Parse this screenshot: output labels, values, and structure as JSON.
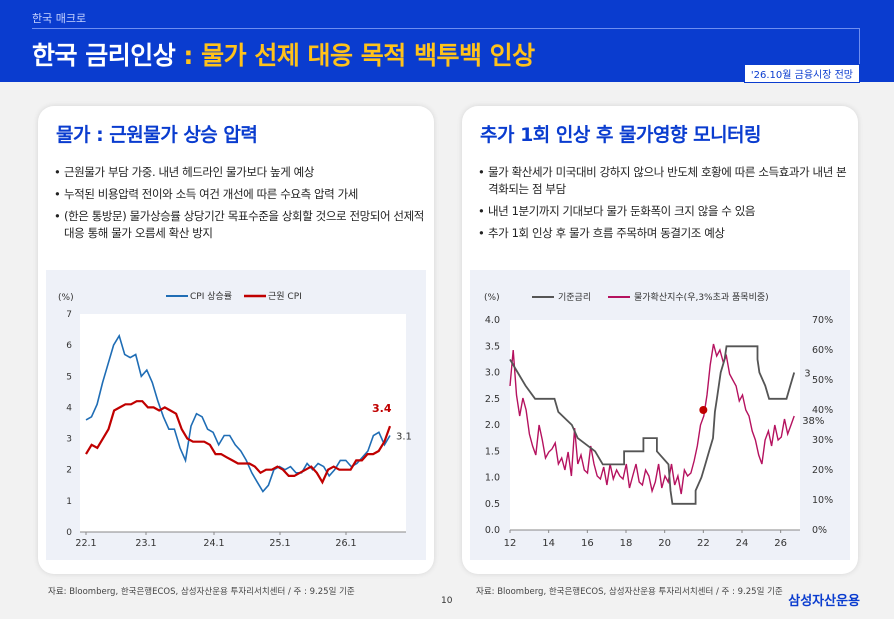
{
  "header": {
    "section": "한국 매크로",
    "title_main": "한국 금리인상 ",
    "title_highlight": " : 물가 선제 대응 목적 백투백 인상",
    "badge": "'26.10월 금융시장 전망"
  },
  "left_card": {
    "title": "물가 : 근원물가 상승 압력",
    "bullets": [
      "근원물가 부담 가중. 내년 헤드라인 물가보다 높게 예상",
      "누적된 비용압력 전이와 소득 여건 개선에 따른 수요측 압력 가세",
      "(한은 통방문) 물가상승률 상당기간 목표수준을 상회할 것으로 전망되어 선제적 대응 통해 물가 오름세 확산 방지"
    ]
  },
  "right_card": {
    "title": "추가 1회 인상 후 물가영향 모니터링",
    "bullets": [
      "물가 확산세가 미국대비 강하지 않으나 반도체 호황에 따른 소득효과가 내년 본격화되는 점 부담",
      "내년 1분기까지 기대보다 물가 둔화폭이 크지 않을 수 있음",
      "추가 1회 인상 후 물가 흐름 주목하며 동결기조 예상"
    ]
  },
  "chart_data": [
    {
      "type": "line",
      "unit_label": "(%)",
      "x_ticks": [
        "22.1",
        "23.1",
        "24.1",
        "25.1",
        "26.1"
      ],
      "ylim": [
        0,
        7
      ],
      "y_ticks": [
        "0",
        "1",
        "2",
        "3",
        "4",
        "5",
        "6",
        "7"
      ],
      "legend_position": "top",
      "series": [
        {
          "name": "CPI 상승률",
          "color": "#1f6db5",
          "end_label": "3.1",
          "values": [
            3.6,
            3.7,
            4.1,
            4.8,
            5.4,
            6.0,
            6.3,
            5.7,
            5.6,
            5.7,
            5.0,
            5.2,
            4.8,
            4.2,
            3.7,
            3.3,
            3.3,
            2.7,
            2.3,
            3.4,
            3.8,
            3.7,
            3.3,
            3.2,
            2.8,
            3.1,
            3.1,
            2.8,
            2.6,
            2.3,
            1.9,
            1.6,
            1.3,
            1.5,
            2.0,
            2.1,
            2.0,
            2.1,
            1.9,
            1.9,
            2.2,
            2.0,
            2.2,
            2.1,
            1.8,
            2.0,
            2.3,
            2.3,
            2.1,
            2.2,
            2.4,
            2.6,
            3.1,
            3.2,
            2.8,
            3.1
          ]
        },
        {
          "name": "근원 CPI",
          "color": "#c00000",
          "end_label": "3.4",
          "values": [
            2.5,
            2.8,
            2.7,
            3.0,
            3.3,
            3.9,
            4.0,
            4.1,
            4.1,
            4.2,
            4.2,
            4.0,
            4.0,
            3.9,
            4.0,
            3.9,
            3.8,
            3.3,
            3.0,
            2.9,
            2.9,
            2.9,
            2.8,
            2.5,
            2.5,
            2.4,
            2.3,
            2.2,
            2.2,
            2.2,
            2.1,
            1.9,
            2.0,
            2.0,
            2.1,
            2.0,
            1.8,
            1.8,
            1.9,
            2.0,
            2.1,
            1.9,
            1.6,
            2.0,
            2.1,
            2.0,
            2.0,
            2.0,
            2.3,
            2.3,
            2.5,
            2.5,
            2.6,
            2.9,
            3.4
          ]
        }
      ]
    },
    {
      "type": "line",
      "unit_label": "(%)",
      "x_ticks": [
        "12",
        "14",
        "16",
        "18",
        "20",
        "22",
        "24",
        "26"
      ],
      "xlim": [
        12,
        27
      ],
      "ylim": [
        0,
        4.0
      ],
      "y_ticks": [
        "0.0",
        "0.5",
        "1.0",
        "1.5",
        "2.0",
        "2.5",
        "3.0",
        "3.5",
        "4.0"
      ],
      "y2lim": [
        0,
        70
      ],
      "y2_ticks": [
        "0%",
        "10%",
        "20%",
        "30%",
        "40%",
        "50%",
        "60%",
        "70%"
      ],
      "legend_position": "top",
      "series": [
        {
          "name": "기준금리",
          "color": "#555555",
          "axis": "left",
          "end_label": "3",
          "points": [
            [
              12,
              3.25
            ],
            [
              12.4,
              3.0
            ],
            [
              12.8,
              2.75
            ],
            [
              13.3,
              2.5
            ],
            [
              14.3,
              2.5
            ],
            [
              14.5,
              2.25
            ],
            [
              15.2,
              2.0
            ],
            [
              15.5,
              1.75
            ],
            [
              16.4,
              1.5
            ],
            [
              16.8,
              1.25
            ],
            [
              17.9,
              1.25
            ],
            [
              17.9,
              1.5
            ],
            [
              18.9,
              1.5
            ],
            [
              18.9,
              1.75
            ],
            [
              19.6,
              1.75
            ],
            [
              19.6,
              1.5
            ],
            [
              20.2,
              1.25
            ],
            [
              20.3,
              0.75
            ],
            [
              20.4,
              0.5
            ],
            [
              21.6,
              0.5
            ],
            [
              21.6,
              0.75
            ],
            [
              21.9,
              1.0
            ],
            [
              22.1,
              1.25
            ],
            [
              22.3,
              1.5
            ],
            [
              22.5,
              1.75
            ],
            [
              22.6,
              2.25
            ],
            [
              22.7,
              2.5
            ],
            [
              22.9,
              3.0
            ],
            [
              23.1,
              3.25
            ],
            [
              23.2,
              3.5
            ],
            [
              24.8,
              3.5
            ],
            [
              24.8,
              3.25
            ],
            [
              24.9,
              3.0
            ],
            [
              25.2,
              2.75
            ],
            [
              25.4,
              2.5
            ],
            [
              26.3,
              2.5
            ],
            [
              26.5,
              2.75
            ],
            [
              26.7,
              3.0
            ]
          ]
        },
        {
          "name": "물가확산지수(우,3%초과 품목비중)",
          "color": "#b5125f",
          "axis": "right",
          "end_label": "38%",
          "values": [
            48,
            60,
            45,
            38,
            44,
            40,
            32,
            28,
            25,
            35,
            30,
            24,
            26,
            27,
            29,
            22,
            24,
            20,
            26,
            18,
            34,
            22,
            25,
            20,
            19,
            28,
            22,
            18,
            17,
            21,
            15,
            22,
            17,
            20,
            18,
            17,
            22,
            14,
            18,
            22,
            16,
            15,
            20,
            18,
            13,
            16,
            22,
            14,
            18,
            16,
            22,
            15,
            18,
            12,
            20,
            18,
            19,
            23,
            28,
            35,
            38,
            45,
            55,
            62,
            58,
            60,
            56,
            58,
            52,
            50,
            48,
            43,
            45,
            40,
            38,
            33,
            30,
            25,
            22,
            30,
            33,
            28,
            35,
            30,
            31,
            37,
            32,
            35,
            38
          ]
        }
      ],
      "markers": [
        {
          "x": 22.0,
          "value": 40,
          "axis": "right",
          "color": "#c00000"
        }
      ]
    }
  ],
  "sources": {
    "left": "자료: Bloomberg, 한국은행ECOS, 삼성자산운용 투자리서치센터 / 주 : 9.25일 기준",
    "right": "자료: Bloomberg, 한국은행ECOS, 삼성자산운용 투자리서치센터 / 주 : 9.25일 기준"
  },
  "page_number": "10",
  "logo": "삼성자산운용"
}
